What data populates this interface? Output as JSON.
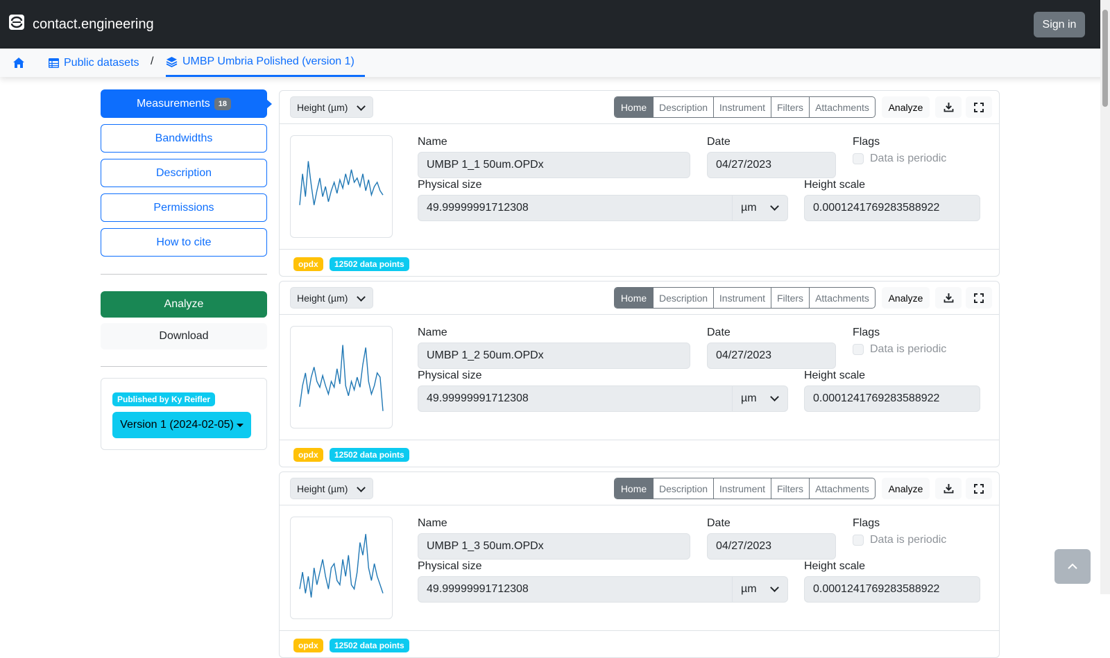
{
  "navbar": {
    "brand": "contact.engineering",
    "signin_label": "Sign in"
  },
  "breadcrumb": {
    "items": [
      {
        "label": "",
        "icon": "home-icon"
      },
      {
        "label": "Public datasets",
        "icon": "table-icon"
      },
      {
        "label": "UMBP Umbria Polished (version 1)",
        "icon": "layers-icon",
        "active": true
      }
    ],
    "separator": "/"
  },
  "sidebar": {
    "measurements_label": "Measurements",
    "measurements_count": "18",
    "items": [
      "Bandwidths",
      "Description",
      "Permissions",
      "How to cite"
    ],
    "analyze_label": "Analyze",
    "download_label": "Download",
    "published_by": "Published by Ky Reifler",
    "version_label": "Version 1 (2024-02-05)"
  },
  "card_labels": {
    "channel": "Height (µm)",
    "tabs": [
      "Home",
      "Description",
      "Instrument",
      "Filters",
      "Attachments"
    ],
    "analyze": "Analyze",
    "name": "Name",
    "date": "Date",
    "flags": "Flags",
    "periodic": "Data is periodic",
    "physical_size": "Physical size",
    "height_scale": "Height scale"
  },
  "measurements": [
    {
      "name": "UMBP 1_1 50um.OPDx",
      "date": "04/27/2023",
      "physical_size": "49.99999991712308",
      "unit": "µm",
      "height_scale": "0.0001241769283588922",
      "format_badge": "opdx",
      "points_badge": "12502 data points",
      "profile": [
        0.72,
        0.35,
        0.62,
        0.2,
        0.48,
        0.72,
        0.55,
        0.4,
        0.62,
        0.5,
        0.68,
        0.55,
        0.45,
        0.58,
        0.42,
        0.52,
        0.35,
        0.48,
        0.3,
        0.45,
        0.4,
        0.5,
        0.35,
        0.55,
        0.42,
        0.6,
        0.5,
        0.45,
        0.55,
        0.6
      ]
    },
    {
      "name": "UMBP 1_2 50um.OPDx",
      "date": "04/27/2023",
      "physical_size": "49.99999991712308",
      "unit": "µm",
      "height_scale": "0.0001241769283588922",
      "format_badge": "opdx",
      "points_badge": "12502 data points",
      "profile": [
        0.85,
        0.6,
        0.45,
        0.7,
        0.5,
        0.38,
        0.55,
        0.62,
        0.48,
        0.6,
        0.7,
        0.55,
        0.62,
        0.4,
        0.58,
        0.12,
        0.6,
        0.72,
        0.55,
        0.65,
        0.5,
        0.62,
        0.35,
        0.15,
        0.55,
        0.7,
        0.6,
        0.45,
        0.5,
        0.9
      ]
    },
    {
      "name": "UMBP 1_3 50um.OPDx",
      "date": "04/27/2023",
      "physical_size": "49.99999991712308",
      "unit": "µm",
      "height_scale": "0.0001241769283588922",
      "format_badge": "opdx",
      "points_badge": "12502 data points",
      "profile": [
        0.75,
        0.55,
        0.8,
        0.6,
        0.85,
        0.5,
        0.7,
        0.55,
        0.4,
        0.6,
        0.75,
        0.5,
        0.45,
        0.65,
        0.7,
        0.4,
        0.6,
        0.35,
        0.7,
        0.75,
        0.55,
        0.2,
        0.35,
        0.1,
        0.5,
        0.65,
        0.45,
        0.6,
        0.7,
        0.8
      ]
    }
  ],
  "colors": {
    "primary": "#0d6efd",
    "navbar": "#212529",
    "success": "#198754",
    "info": "#0dcaf0",
    "warning": "#ffc107",
    "secondary": "#6c757d",
    "plot_line": "#1f77b4"
  }
}
